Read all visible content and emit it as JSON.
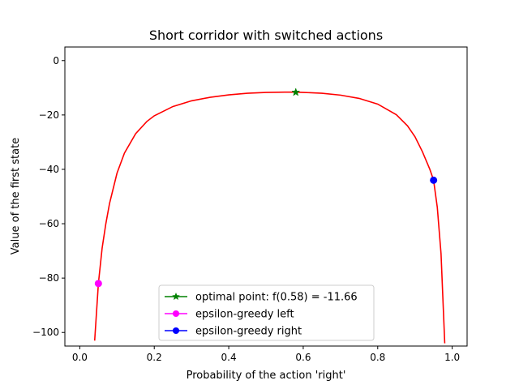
{
  "chart_data": {
    "type": "line",
    "title": "Short corridor with switched actions",
    "xlabel": "Probability of the action 'right'",
    "ylabel": "Value of the first state",
    "xlim": [
      -0.04,
      1.04
    ],
    "ylim": [
      -105,
      5
    ],
    "xticks": [
      0.0,
      0.2,
      0.4,
      0.6,
      0.8,
      1.0
    ],
    "xtick_labels": [
      "0.0",
      "0.2",
      "0.4",
      "0.6",
      "0.8",
      "1.0"
    ],
    "yticks": [
      0,
      -20,
      -40,
      -60,
      -80,
      -100
    ],
    "ytick_labels": [
      "0",
      "−20",
      "−40",
      "−60",
      "−80",
      "−100"
    ],
    "grid": false,
    "legend_placement": "lower-center",
    "curve": {
      "color": "#ff0000",
      "x": [
        0.04,
        0.05,
        0.06,
        0.07,
        0.08,
        0.1,
        0.12,
        0.15,
        0.18,
        0.2,
        0.25,
        0.3,
        0.35,
        0.4,
        0.45,
        0.5,
        0.55,
        0.58,
        0.6,
        0.65,
        0.7,
        0.75,
        0.8,
        0.85,
        0.88,
        0.9,
        0.92,
        0.94,
        0.95,
        0.96,
        0.97,
        0.98
      ],
      "y": [
        -103,
        -82,
        -69,
        -60,
        -52.5,
        -41.4,
        -34,
        -26.9,
        -22.4,
        -20.3,
        -16.9,
        -14.8,
        -13.5,
        -12.6,
        -12.0,
        -11.7,
        -11.6,
        -11.6,
        -11.7,
        -12.0,
        -12.7,
        -13.9,
        -16.0,
        -19.9,
        -24.0,
        -28.0,
        -33.5,
        -40.0,
        -44.0,
        -54.0,
        -71.0,
        -104.0
      ]
    },
    "markers": [
      {
        "name": "optimal point: f(0.58) = -11.66",
        "x": 0.58,
        "y": -11.66,
        "color": "#008000",
        "shape": "star"
      },
      {
        "name": "epsilon-greedy left",
        "x": 0.05,
        "y": -82.0,
        "color": "#ff00ff",
        "shape": "circle"
      },
      {
        "name": "epsilon-greedy right",
        "x": 0.95,
        "y": -44.0,
        "color": "#0000ff",
        "shape": "circle"
      }
    ]
  }
}
